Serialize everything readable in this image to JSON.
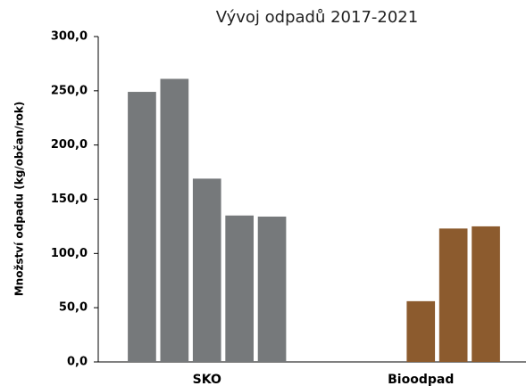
{
  "chart_data": {
    "type": "bar",
    "title": "Vývoj odpadů 2017-2021",
    "y_label": "Množství odpadu (kg/občan/rok)",
    "categories": [
      "SKO",
      "Bioodpad"
    ],
    "category_colors": [
      "#76797b",
      "#8c5b2e"
    ],
    "series": [
      {
        "values": [
          249,
          null
        ]
      },
      {
        "values": [
          261,
          null
        ]
      },
      {
        "values": [
          169,
          56
        ]
      },
      {
        "values": [
          135,
          123
        ]
      },
      {
        "values": [
          134,
          125
        ]
      }
    ],
    "ylim": [
      0,
      300
    ],
    "yticks": [
      {
        "value": 0,
        "label": "0,0"
      },
      {
        "value": 50,
        "label": "50,0"
      },
      {
        "value": 100,
        "label": "100,0"
      },
      {
        "value": 150,
        "label": "150,0"
      },
      {
        "value": 200,
        "label": "200,0"
      },
      {
        "value": 250,
        "label": "250,0"
      },
      {
        "value": 300,
        "label": "300,0"
      }
    ],
    "grid": false
  }
}
